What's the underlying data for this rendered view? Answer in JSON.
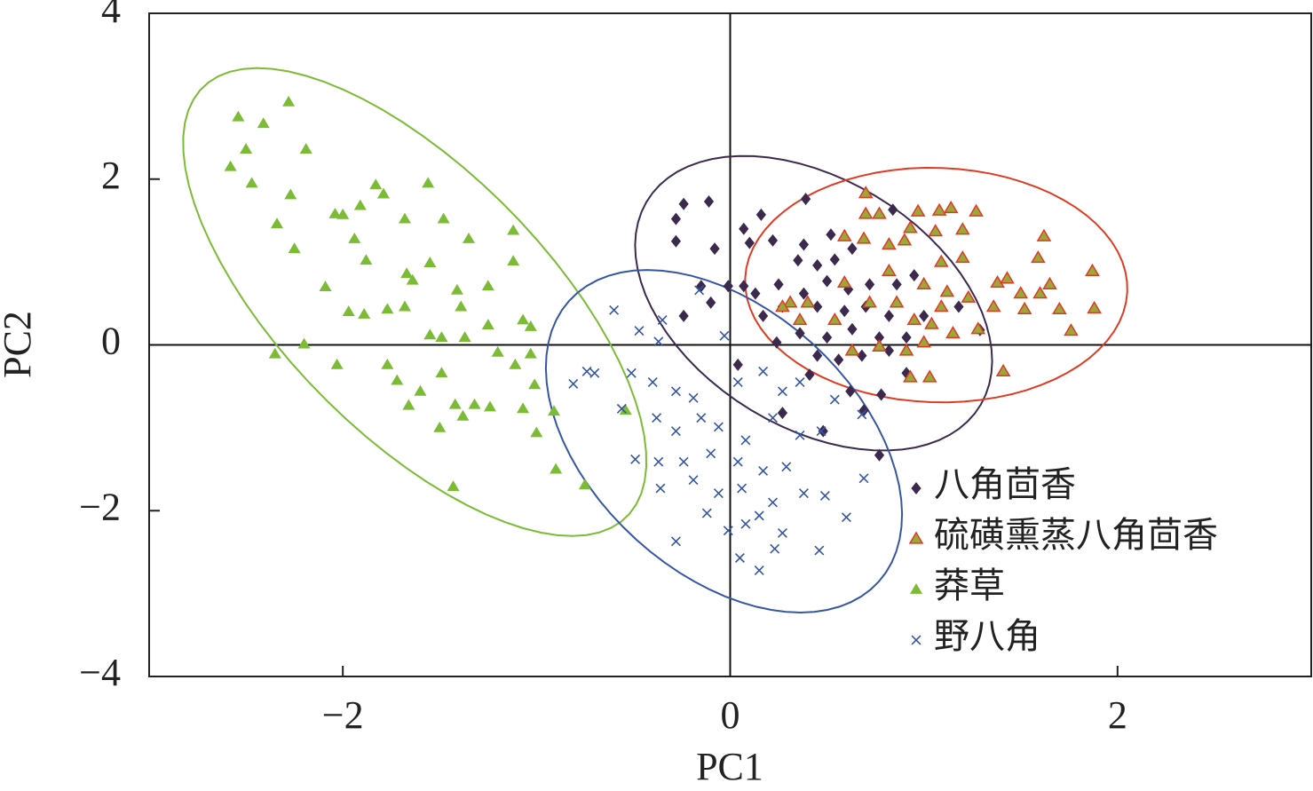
{
  "chart_data": {
    "type": "scatter",
    "x_label": "PC1",
    "y_label": "PC2",
    "xlim": [
      -3,
      3
    ],
    "ylim": [
      -4,
      4
    ],
    "xticks": [
      {
        "value": -2,
        "label": "−2"
      },
      0,
      2
    ],
    "yticks": [
      {
        "value": -4,
        "label": "−4"
      },
      {
        "value": -2,
        "label": "−2"
      },
      0,
      2,
      4
    ],
    "grid": false,
    "legend": "lower right",
    "zero_lines": true,
    "ellipses": true,
    "series": [
      {
        "name": "八角茴香",
        "color": "#3b2a4e",
        "marker": "diamond",
        "x": [
          -0.24,
          -0.28,
          -0.11,
          0.16,
          0.39,
          0.07,
          0.1,
          0.22,
          -0.28,
          -0.08,
          0.38,
          0.52,
          0.63,
          0.84,
          0.35,
          0.45,
          0.54,
          -0.15,
          -0.01,
          0.07,
          0.13,
          0.25,
          0.38,
          0.5,
          0.61,
          0.72,
          0.86,
          0.95,
          -0.24,
          -0.1,
          0.17,
          0.27,
          0.45,
          0.59,
          0.7,
          0.82,
          1.0,
          1.18,
          1.29,
          0.36,
          0.5,
          0.63,
          0.77,
          0.91,
          0.24,
          0.45,
          0.56,
          0.68,
          0.82,
          0.04,
          0.41,
          0.62,
          0.78,
          0.91,
          0.69,
          0.48,
          0.77,
          0.27
        ],
        "y": [
          1.7,
          1.52,
          1.73,
          1.57,
          1.76,
          1.4,
          1.23,
          1.26,
          1.25,
          1.16,
          1.21,
          1.33,
          1.16,
          1.63,
          1.02,
          0.96,
          1.03,
          0.71,
          0.71,
          0.71,
          0.62,
          0.73,
          0.62,
          0.77,
          0.67,
          0.73,
          0.73,
          0.84,
          0.35,
          0.51,
          0.35,
          0.46,
          0.46,
          0.41,
          0.46,
          0.35,
          0.35,
          0.46,
          0.18,
          0.14,
          0.09,
          0.19,
          0.09,
          0.09,
          0.03,
          -0.13,
          -0.18,
          -0.13,
          -0.07,
          -0.24,
          -0.36,
          -0.56,
          -0.6,
          -0.34,
          -0.79,
          -1.04,
          -1.33,
          -0.82
        ]
      },
      {
        "name": "硫磺熏蒸八角茴香",
        "color": "#e03a22",
        "fill": "#9aa83a",
        "marker": "triangle-outline",
        "x": [
          0.7,
          0.7,
          0.77,
          0.97,
          1.08,
          1.14,
          1.27,
          1.06,
          1.2,
          0.93,
          0.82,
          0.9,
          0.59,
          0.69,
          1.62,
          1.59,
          1.87,
          1.65,
          1.6,
          1.5,
          1.38,
          1.43,
          1.09,
          1.2,
          0.82,
          1.0,
          1.12,
          1.23,
          0.59,
          0.72,
          0.86,
          1.09,
          1.36,
          1.52,
          1.7,
          1.88,
          0.31,
          0.36,
          0.54,
          0.95,
          1.04,
          1.15,
          1.76,
          0.63,
          0.77,
          0.91,
          1.0,
          1.28,
          1.41,
          1.03,
          0.93,
          0.27,
          0.4
        ],
        "y": [
          1.83,
          1.58,
          1.58,
          1.61,
          1.62,
          1.65,
          1.61,
          1.37,
          1.39,
          1.41,
          1.21,
          1.26,
          1.31,
          1.28,
          1.31,
          1.05,
          0.89,
          0.73,
          0.62,
          0.62,
          0.75,
          0.8,
          1.0,
          1.05,
          0.89,
          0.73,
          0.64,
          0.57,
          0.75,
          0.51,
          0.51,
          0.46,
          0.46,
          0.43,
          0.43,
          0.44,
          0.51,
          0.3,
          0.3,
          0.3,
          0.25,
          0.14,
          0.17,
          -0.07,
          -0.02,
          -0.07,
          0.03,
          0.19,
          -0.32,
          -0.39,
          -0.39,
          0.46,
          0.51
        ]
      },
      {
        "name": "莽草",
        "color": "#7cbb35",
        "marker": "triangle",
        "x": [
          -2.54,
          -2.41,
          -2.28,
          -2.5,
          -2.58,
          -2.47,
          -2.19,
          -2.27,
          -2.34,
          -2.25,
          -2.04,
          -2.0,
          -1.91,
          -1.83,
          -1.79,
          -1.56,
          -1.68,
          -1.48,
          -1.94,
          -1.88,
          -1.67,
          -1.55,
          -1.64,
          -2.09,
          -1.97,
          -1.89,
          -1.77,
          -1.68,
          -1.41,
          -1.39,
          -1.12,
          -1.12,
          -1.25,
          -1.35,
          -2.2,
          -2.35,
          -2.03,
          -1.77,
          -1.66,
          -1.55,
          -1.49,
          -1.37,
          -1.25,
          -1.07,
          -1.03,
          -1.2,
          -1.11,
          -1.49,
          -1.42,
          -1.32,
          -1.24,
          -1.5,
          -1.38,
          -1.07,
          -0.91,
          -1.0,
          -0.9,
          -1.43,
          -0.75,
          -0.54,
          -1.03,
          -1.01,
          -1.72,
          -1.6
        ],
        "y": [
          2.75,
          2.67,
          2.93,
          2.36,
          2.15,
          1.95,
          2.36,
          1.81,
          1.46,
          1.16,
          1.58,
          1.57,
          1.68,
          1.93,
          1.82,
          1.95,
          1.52,
          1.52,
          1.28,
          1.02,
          0.86,
          0.99,
          0.78,
          0.7,
          0.4,
          0.37,
          0.43,
          0.46,
          0.66,
          0.46,
          1.38,
          1.01,
          0.71,
          1.28,
          0.01,
          -0.11,
          -0.24,
          -0.24,
          -0.73,
          0.12,
          0.09,
          0.09,
          0.24,
          0.3,
          0.22,
          -0.09,
          -0.24,
          -0.34,
          -0.72,
          -0.72,
          -0.75,
          -1.0,
          -0.86,
          -0.77,
          -0.8,
          -1.06,
          -1.5,
          -1.71,
          -1.69,
          -0.79,
          -0.11,
          -0.48,
          -0.43,
          -0.56
        ]
      },
      {
        "name": "野八角",
        "color": "#3555a5",
        "marker": "x",
        "x": [
          -0.6,
          -0.47,
          -0.35,
          -0.16,
          -0.37,
          -0.7,
          -0.81,
          -0.51,
          -0.4,
          -0.28,
          -0.19,
          -0.03,
          0.04,
          0.17,
          0.27,
          -0.56,
          -0.38,
          -0.28,
          -0.15,
          -0.06,
          0.08,
          0.22,
          0.36,
          0.47,
          -0.49,
          -0.37,
          -0.24,
          -0.1,
          0.04,
          0.17,
          0.29,
          -0.36,
          -0.19,
          -0.06,
          0.06,
          0.22,
          0.38,
          0.49,
          -0.12,
          -0.01,
          0.08,
          0.15,
          0.27,
          -0.28,
          0.05,
          0.15,
          0.23,
          0.46,
          0.6,
          0.69,
          0.68,
          0.54,
          0.36,
          -0.74
        ],
        "y": [
          0.42,
          0.17,
          0.3,
          0.66,
          0.04,
          -0.34,
          -0.47,
          -0.34,
          -0.45,
          -0.56,
          -0.64,
          0.11,
          -0.45,
          -0.32,
          -0.56,
          -0.77,
          -0.88,
          -1.04,
          -0.88,
          -0.99,
          -1.15,
          -0.88,
          -1.09,
          -1.04,
          -1.38,
          -1.41,
          -1.41,
          -1.31,
          -1.41,
          -1.52,
          -1.47,
          -1.73,
          -1.63,
          -1.79,
          -1.73,
          -1.9,
          -1.79,
          -1.82,
          -2.03,
          -2.24,
          -2.16,
          -2.06,
          -2.27,
          -2.37,
          -2.57,
          -2.72,
          -2.46,
          -2.48,
          -2.08,
          -1.61,
          -0.84,
          -0.66,
          -0.45,
          -0.32
        ]
      }
    ]
  }
}
